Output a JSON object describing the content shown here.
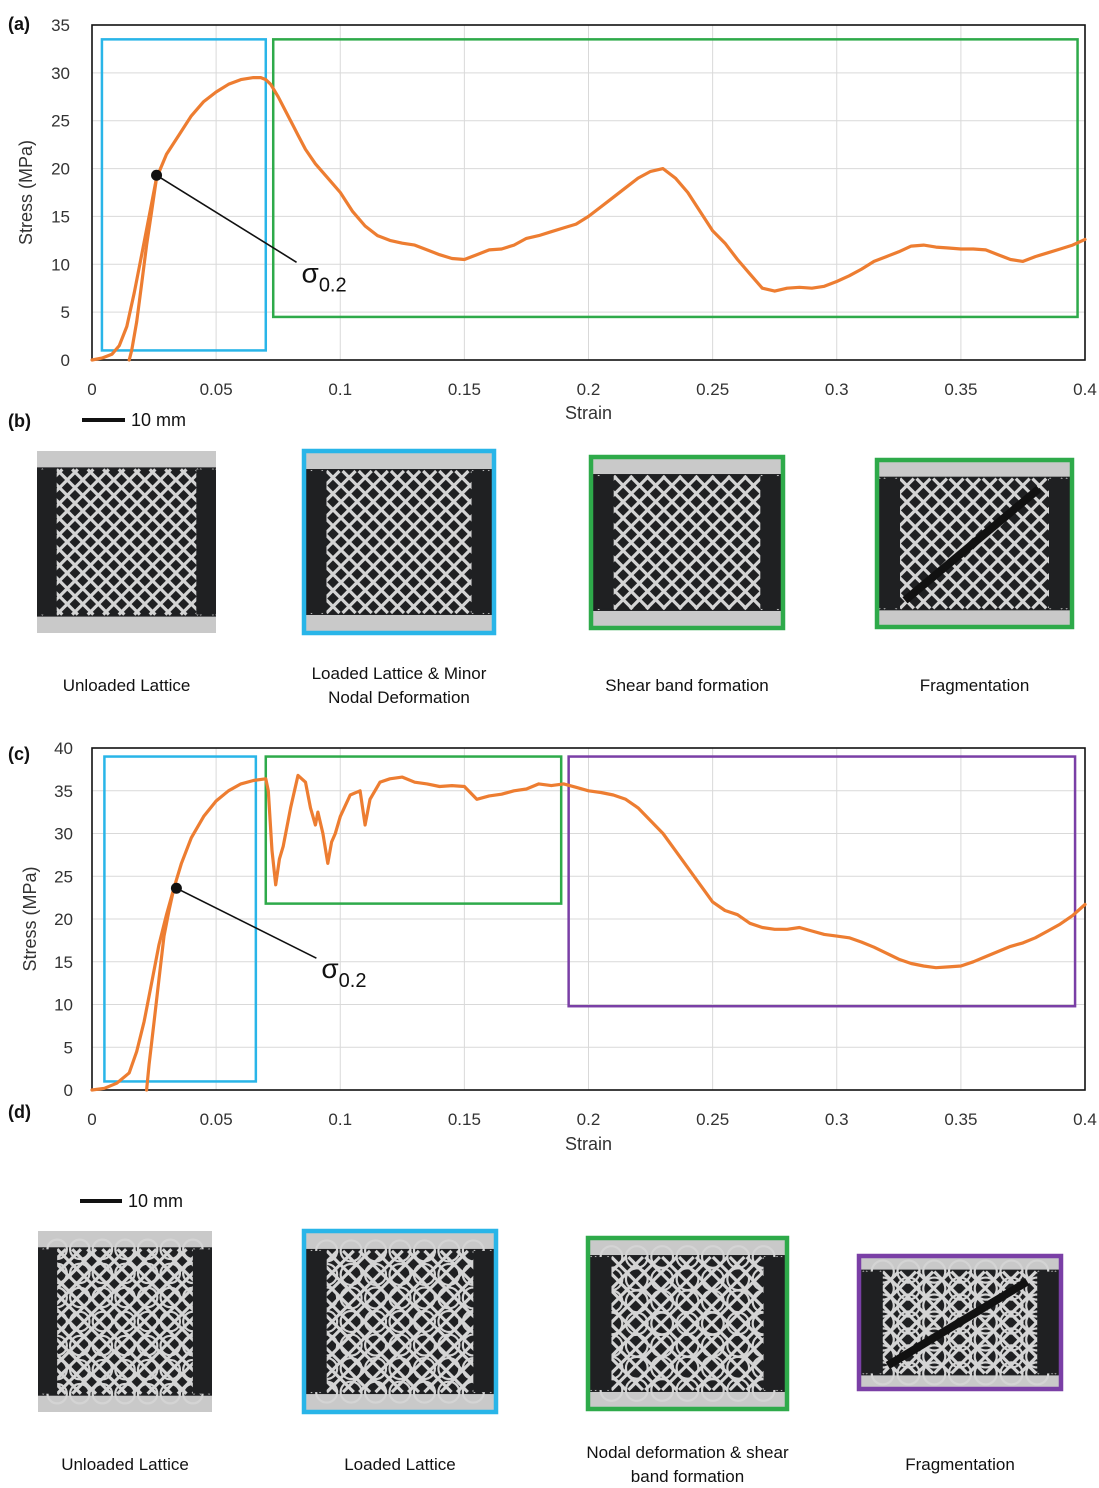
{
  "labels": {
    "a": "(a)",
    "b": "(b)",
    "c": "(c)",
    "d": "(d)",
    "scale_bar_b": "10 mm",
    "scale_bar_d": "10 mm"
  },
  "colors": {
    "curve": "#ed7d31",
    "elastic_box": "#29b5e8",
    "shear_box": "#2eaa4a",
    "fragmentation_box": "#7a3fa6",
    "lattice_bg": "#1f2022",
    "lattice_strut": "#d4d4d4",
    "platen": "#c9c9c9"
  },
  "photos_b": [
    {
      "caption": [
        "Unloaded Lattice"
      ],
      "frame": "none",
      "pattern": "diamond"
    },
    {
      "caption": [
        "Loaded Lattice & Minor",
        "Nodal Deformation"
      ],
      "frame": "elastic_box",
      "pattern": "diamond"
    },
    {
      "caption": [
        "Shear band formation"
      ],
      "frame": "shear_box",
      "pattern": "diamond"
    },
    {
      "caption": [
        "Fragmentation"
      ],
      "frame": "shear_box",
      "pattern": "diamond-broken"
    }
  ],
  "photos_d": [
    {
      "caption": [
        "Unloaded Lattice"
      ],
      "frame": "none",
      "pattern": "circle"
    },
    {
      "caption": [
        "Loaded Lattice"
      ],
      "frame": "elastic_box",
      "pattern": "circle"
    },
    {
      "caption": [
        "Nodal deformation & shear",
        "band formation"
      ],
      "frame": "shear_box",
      "pattern": "circle"
    },
    {
      "caption": [
        "Fragmentation"
      ],
      "frame": "fragmentation_box",
      "pattern": "circle-broken"
    }
  ],
  "chart_data": [
    {
      "panel": "(a)",
      "type": "line",
      "xlabel": "Strain",
      "ylabel": "Stress (MPa)",
      "xlim": [
        0,
        0.4
      ],
      "ylim": [
        0,
        35
      ],
      "xticks": [
        "0",
        "0.05",
        "0.1",
        "0.15",
        "0.2",
        "0.25",
        "0.3",
        "0.35",
        "0.4"
      ],
      "yticks": [
        "0",
        "5",
        "10",
        "15",
        "20",
        "25",
        "30",
        "35"
      ],
      "grid": true,
      "series": [
        {
          "x": [
            0,
            0.004,
            0.008,
            0.011,
            0.014,
            0.017,
            0.02,
            0.023,
            0.026
          ],
          "y": [
            0,
            0.2,
            0.6,
            1.5,
            3.5,
            7,
            11,
            15,
            19
          ]
        },
        {
          "x": [
            0.015,
            0.016,
            0.018,
            0.02,
            0.022,
            0.024,
            0.026,
            0.03,
            0.035,
            0.04,
            0.045,
            0.05,
            0.055,
            0.06,
            0.065,
            0.068,
            0.07,
            0.072,
            0.075,
            0.078,
            0.08,
            0.083,
            0.086,
            0.09,
            0.095,
            0.1,
            0.105,
            0.11,
            0.115,
            0.12,
            0.125,
            0.13,
            0.135,
            0.14,
            0.145,
            0.15,
            0.155,
            0.16,
            0.165,
            0.17,
            0.175,
            0.18,
            0.185,
            0.19,
            0.195,
            0.2,
            0.205,
            0.21,
            0.215,
            0.22,
            0.225,
            0.23,
            0.235,
            0.24,
            0.245,
            0.25,
            0.255,
            0.26,
            0.265,
            0.27,
            0.275,
            0.28,
            0.285,
            0.29,
            0.295,
            0.3,
            0.305,
            0.31,
            0.315,
            0.32,
            0.325,
            0.33,
            0.335,
            0.34,
            0.345,
            0.35,
            0.355,
            0.36,
            0.365,
            0.37,
            0.375,
            0.38,
            0.385,
            0.39,
            0.395,
            0.4
          ],
          "y": [
            0,
            1,
            4,
            8,
            12,
            15.5,
            19,
            21.5,
            23.5,
            25.5,
            27,
            28,
            28.8,
            29.3,
            29.5,
            29.5,
            29.3,
            28.8,
            27.5,
            26,
            25,
            23.5,
            22,
            20.5,
            19,
            17.5,
            15.5,
            14,
            13,
            12.5,
            12.2,
            12,
            11.5,
            11,
            10.6,
            10.5,
            11,
            11.5,
            11.6,
            12,
            12.7,
            13,
            13.4,
            13.8,
            14.2,
            15,
            16,
            17,
            18,
            19,
            19.7,
            20,
            19,
            17.5,
            15.5,
            13.5,
            12.2,
            10.5,
            9,
            7.5,
            7.2,
            7.5,
            7.6,
            7.5,
            7.7,
            8.2,
            8.8,
            9.5,
            10.3,
            10.8,
            11.3,
            11.9,
            12,
            11.8,
            11.7,
            11.6,
            11.6,
            11.5,
            11,
            10.5,
            10.3,
            10.8,
            11.2,
            11.6,
            12,
            12.6
          ]
        }
      ],
      "point": {
        "x": 0.026,
        "y": 19.3
      },
      "annotation_label": "σ",
      "annotation_sub": "0.2",
      "regions": [
        {
          "color": "elastic_box",
          "x": [
            0.004,
            0.07
          ],
          "y": [
            1,
            33.5
          ]
        },
        {
          "color": "shear_box",
          "x": [
            0.073,
            0.397
          ],
          "y": [
            4.5,
            33.5
          ]
        }
      ]
    },
    {
      "panel": "(c)",
      "type": "line",
      "xlabel": "Strain",
      "ylabel": "Stress (MPa)",
      "xlim": [
        0,
        0.4
      ],
      "ylim": [
        0,
        40
      ],
      "xticks": [
        "0",
        "0.05",
        "0.1",
        "0.15",
        "0.2",
        "0.25",
        "0.3",
        "0.35",
        "0.4"
      ],
      "yticks": [
        "0",
        "5",
        "10",
        "15",
        "20",
        "25",
        "30",
        "35",
        "40"
      ],
      "grid": true,
      "series": [
        {
          "x": [
            0,
            0.005,
            0.01,
            0.015,
            0.018,
            0.021,
            0.024,
            0.027,
            0.03,
            0.033
          ],
          "y": [
            0,
            0.2,
            0.8,
            2,
            4.5,
            8,
            12.5,
            17,
            20.5,
            23.6
          ]
        },
        {
          "x": [
            0.022,
            0.023,
            0.025,
            0.027,
            0.029,
            0.031,
            0.033,
            0.036,
            0.04,
            0.045,
            0.05,
            0.055,
            0.06,
            0.065,
            0.07,
            0.071,
            0.0725,
            0.074,
            0.0755,
            0.077,
            0.08,
            0.083,
            0.086,
            0.088,
            0.09,
            0.091,
            0.093,
            0.095,
            0.0965,
            0.098,
            0.1,
            0.104,
            0.108,
            0.11,
            0.112,
            0.116,
            0.12,
            0.125,
            0.13,
            0.135,
            0.14,
            0.145,
            0.15,
            0.155,
            0.16,
            0.165,
            0.17,
            0.175,
            0.18,
            0.185,
            0.19,
            0.195,
            0.2,
            0.205,
            0.21,
            0.215,
            0.22,
            0.225,
            0.23,
            0.235,
            0.24,
            0.245,
            0.25,
            0.255,
            0.26,
            0.265,
            0.27,
            0.275,
            0.28,
            0.285,
            0.29,
            0.295,
            0.3,
            0.305,
            0.31,
            0.315,
            0.32,
            0.325,
            0.33,
            0.335,
            0.34,
            0.345,
            0.35,
            0.355,
            0.36,
            0.365,
            0.37,
            0.375,
            0.38,
            0.385,
            0.39,
            0.395,
            0.4
          ],
          "y": [
            0,
            3,
            8,
            13,
            18,
            21,
            23.6,
            26.5,
            29.5,
            32,
            33.8,
            35,
            35.8,
            36.2,
            36.4,
            35,
            28,
            24,
            27,
            28.5,
            33,
            36.8,
            36,
            33,
            31,
            32.5,
            30,
            26.5,
            29,
            30,
            32,
            34.5,
            35,
            31,
            34,
            36,
            36.4,
            36.6,
            36,
            35.8,
            35.5,
            35.6,
            35.5,
            34,
            34.4,
            34.6,
            35,
            35.2,
            35.8,
            35.6,
            35.8,
            35.4,
            35,
            34.8,
            34.5,
            34,
            33,
            31.5,
            30,
            28,
            26,
            24,
            22,
            21,
            20.5,
            19.5,
            19,
            18.8,
            18.8,
            19,
            18.6,
            18.2,
            18,
            17.8,
            17.3,
            16.7,
            16,
            15.3,
            14.8,
            14.5,
            14.3,
            14.4,
            14.5,
            15,
            15.6,
            16.2,
            16.8,
            17.2,
            17.8,
            18.6,
            19.4,
            20.4,
            21.7
          ]
        }
      ],
      "point": {
        "x": 0.034,
        "y": 23.6
      },
      "annotation_label": "σ",
      "annotation_sub": "0.2",
      "regions": [
        {
          "color": "elastic_box",
          "x": [
            0.005,
            0.066
          ],
          "y": [
            1,
            39
          ]
        },
        {
          "color": "shear_box",
          "x": [
            0.07,
            0.189
          ],
          "y": [
            21.8,
            39
          ]
        },
        {
          "color": "fragmentation_box",
          "x": [
            0.192,
            0.396
          ],
          "y": [
            9.8,
            39
          ]
        }
      ]
    }
  ]
}
